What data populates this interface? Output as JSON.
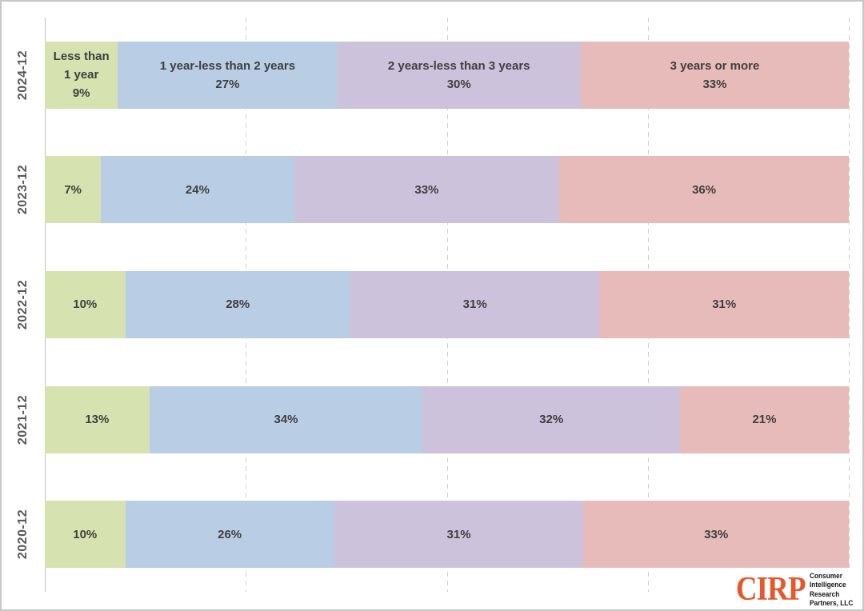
{
  "chart_data": {
    "type": "bar",
    "stacked": true,
    "orientation": "horizontal",
    "categories": [
      "2024-12",
      "2023-12",
      "2022-12",
      "2021-12",
      "2020-12"
    ],
    "series": [
      {
        "name": "Less than 1 year",
        "color": "#d6e2b0",
        "values": [
          9,
          7,
          10,
          13,
          10
        ],
        "row0_label_lines": [
          "Less than",
          "1 year"
        ]
      },
      {
        "name": "1 year-less than 2 years",
        "color": "#b9cde5",
        "values": [
          27,
          24,
          28,
          34,
          26
        ],
        "row0_label_lines": [
          "1 year-less than 2 years"
        ]
      },
      {
        "name": "2 years-less than 3 years",
        "color": "#ccc2dc",
        "values": [
          30,
          33,
          31,
          32,
          31
        ],
        "row0_label_lines": [
          "2 years-less than 3 years"
        ]
      },
      {
        "name": "3 years or more",
        "color": "#e7bbba",
        "values": [
          33,
          36,
          31,
          21,
          33
        ],
        "row0_label_lines": [
          "3 years or more"
        ]
      }
    ],
    "value_suffix": "%",
    "xlim": [
      0,
      100
    ],
    "x_ticks": [
      0,
      25,
      50,
      75,
      100
    ],
    "grid": "vertical dashed gridlines at 25% intervals, solid axis line at 0",
    "legend": "none (series names shown inside first bar row)",
    "title": ""
  },
  "colors": {
    "label": "#3f3f3f",
    "axis_label": "#595959",
    "gridline": "#cfcfcf",
    "axis_line": "#bfbfbf",
    "border": "#c6c6c6",
    "background": "#ffffff",
    "logo_accent": "#e7572b"
  },
  "logo": {
    "abbr": "CIRP",
    "lines": [
      "Consumer",
      "Intelligence",
      "Research",
      "Partners, LLC"
    ]
  }
}
